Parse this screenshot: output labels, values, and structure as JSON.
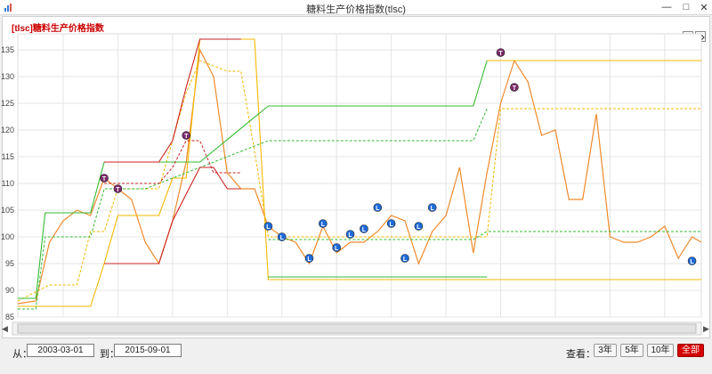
{
  "window": {
    "title": "糖料生产价格指数(tlsc)"
  },
  "chart_title": "[tlsc]糖料生产价格指数",
  "controls": {
    "from_label": "从：",
    "from_value": "2003-03-01",
    "to_label": "到：",
    "to_value": "2015-09-01",
    "view_label": "查看：",
    "range_buttons": [
      "3年",
      "5年",
      "10年",
      "全部"
    ],
    "active_range": "全部"
  },
  "colors": {
    "price": "#f08a2b",
    "upper_band": "#f5b800",
    "lower_band": "#33bb33",
    "red_band": "#cc2222",
    "marker_T": "#7a2a6a",
    "marker_L": "#1e6ad8"
  },
  "chart_data": {
    "type": "line",
    "title": "[tlsc]糖料生产价格指数",
    "y_ticks": [
      85,
      90,
      95,
      100,
      105,
      110,
      115,
      120,
      125,
      130,
      135
    ],
    "ylim": [
      85,
      138
    ],
    "xlim": [
      2003.17,
      2015.67
    ],
    "grid": true,
    "series": [
      {
        "name": "",
        "role": "price",
        "points": [
          [
            2003.17,
            87.5
          ],
          [
            2003.5,
            88
          ],
          [
            2003.75,
            99
          ],
          [
            2004.0,
            103
          ],
          [
            2004.25,
            105
          ],
          [
            2004.5,
            104
          ],
          [
            2004.75,
            111
          ],
          [
            2005.0,
            109
          ],
          [
            2005.25,
            107
          ],
          [
            2005.5,
            99
          ],
          [
            2005.75,
            95
          ],
          [
            2006.0,
            103
          ],
          [
            2006.25,
            114
          ],
          [
            2006.5,
            135
          ],
          [
            2006.75,
            130
          ],
          [
            2007.0,
            112
          ],
          [
            2007.25,
            109
          ],
          [
            2007.5,
            109
          ],
          [
            2007.75,
            102
          ],
          [
            2008.0,
            100
          ],
          [
            2008.25,
            99
          ],
          [
            2008.5,
            95
          ],
          [
            2008.75,
            102
          ],
          [
            2009.0,
            97
          ],
          [
            2009.25,
            99
          ],
          [
            2009.5,
            99
          ],
          [
            2009.75,
            101
          ],
          [
            2010.0,
            104
          ],
          [
            2010.25,
            103
          ],
          [
            2010.5,
            95
          ],
          [
            2010.75,
            101
          ],
          [
            2011.0,
            104
          ],
          [
            2011.25,
            113
          ],
          [
            2011.5,
            97
          ],
          [
            2011.75,
            112
          ],
          [
            2012.0,
            125
          ],
          [
            2012.25,
            133
          ],
          [
            2012.5,
            129
          ],
          [
            2012.75,
            119
          ],
          [
            2013.0,
            120
          ],
          [
            2013.25,
            107
          ],
          [
            2013.5,
            107
          ],
          [
            2013.75,
            123
          ],
          [
            2014.0,
            100
          ],
          [
            2014.25,
            99
          ],
          [
            2014.5,
            99
          ],
          [
            2014.75,
            100
          ],
          [
            2015.0,
            102
          ],
          [
            2015.25,
            96
          ],
          [
            2015.5,
            100
          ],
          [
            2015.67,
            99
          ],
          [
            2015.33,
            95
          ],
          [
            2015.67,
            100
          ]
        ]
      },
      {
        "name": "",
        "role": "upper-band",
        "points": [
          [
            2003.17,
            87
          ],
          [
            2003.75,
            87
          ],
          [
            2004.0,
            87
          ],
          [
            2004.25,
            87
          ],
          [
            2004.5,
            87
          ],
          [
            2004.75,
            95
          ],
          [
            2005.0,
            104
          ],
          [
            2005.25,
            104
          ],
          [
            2005.5,
            104
          ],
          [
            2005.75,
            104
          ],
          [
            2006.0,
            111
          ],
          [
            2006.25,
            111
          ],
          [
            2006.5,
            137
          ],
          [
            2007.0,
            137
          ],
          [
            2007.25,
            137
          ],
          [
            2007.5,
            137
          ],
          [
            2007.75,
            92
          ],
          [
            2011.75,
            92
          ],
          [
            2015.67,
            92
          ]
        ]
      },
      {
        "name": "",
        "role": "upper-band-dashed",
        "points": [
          [
            2003.17,
            88
          ],
          [
            2003.75,
            91
          ],
          [
            2004.25,
            91
          ],
          [
            2004.5,
            101
          ],
          [
            2004.75,
            101
          ],
          [
            2005.0,
            109
          ],
          [
            2005.75,
            109
          ],
          [
            2006.25,
            127
          ],
          [
            2006.5,
            133
          ],
          [
            2007.0,
            131
          ],
          [
            2007.25,
            131
          ],
          [
            2007.5,
            116
          ],
          [
            2007.75,
            100
          ],
          [
            2011.0,
            100
          ],
          [
            2011.75,
            100
          ],
          [
            2012.0,
            124
          ],
          [
            2015.67,
            124
          ]
        ]
      },
      {
        "name": "",
        "role": "upper-solid",
        "points": [
          [
            2011.75,
            133
          ],
          [
            2015.67,
            133
          ]
        ]
      },
      {
        "name": "",
        "role": "lower-band",
        "points": [
          [
            2003.17,
            88.5
          ],
          [
            2003.5,
            88.5
          ],
          [
            2003.67,
            104.5
          ],
          [
            2004.5,
            104.5
          ],
          [
            2004.75,
            114
          ],
          [
            2006.25,
            114
          ],
          [
            2006.5,
            114
          ],
          [
            2007.75,
            124.5
          ],
          [
            2011.0,
            124.5
          ],
          [
            2011.5,
            124.5
          ],
          [
            2011.75,
            133
          ]
        ]
      },
      {
        "name": "",
        "role": "lower-band-dashed",
        "points": [
          [
            2003.17,
            86.5
          ],
          [
            2003.5,
            86.5
          ],
          [
            2003.67,
            100
          ],
          [
            2004.5,
            100
          ],
          [
            2004.75,
            109
          ],
          [
            2005.25,
            109
          ],
          [
            2005.5,
            109
          ],
          [
            2007.75,
            118
          ],
          [
            2011.0,
            118
          ],
          [
            2011.5,
            118
          ],
          [
            2011.75,
            124
          ]
        ]
      },
      {
        "name": "",
        "role": "lower-solid",
        "points": [
          [
            2007.75,
            92.5
          ],
          [
            2011.75,
            92.5
          ]
        ]
      },
      {
        "name": "",
        "role": "lower-dashed-2",
        "points": [
          [
            2007.75,
            99.5
          ],
          [
            2011.5,
            99.5
          ],
          [
            2011.75,
            101
          ],
          [
            2015.67,
            101
          ]
        ]
      },
      {
        "name": "",
        "role": "red-band",
        "points": [
          [
            2004.75,
            114
          ],
          [
            2005.5,
            114
          ],
          [
            2005.75,
            114
          ],
          [
            2006.0,
            118
          ],
          [
            2006.25,
            128
          ],
          [
            2006.5,
            137
          ],
          [
            2007.25,
            137
          ]
        ]
      },
      {
        "name": "",
        "role": "red-band-dashed",
        "points": [
          [
            2004.75,
            110
          ],
          [
            2005.5,
            110
          ],
          [
            2005.75,
            110
          ],
          [
            2006.0,
            113
          ],
          [
            2006.25,
            118
          ],
          [
            2006.5,
            118
          ],
          [
            2006.75,
            112
          ],
          [
            2007.0,
            112
          ],
          [
            2007.25,
            112
          ]
        ]
      },
      {
        "name": "",
        "role": "red-band-low",
        "points": [
          [
            2004.75,
            95
          ],
          [
            2005.5,
            95
          ],
          [
            2005.75,
            95
          ],
          [
            2006.0,
            103
          ],
          [
            2006.25,
            108
          ],
          [
            2006.5,
            113
          ],
          [
            2006.75,
            113
          ],
          [
            2007.0,
            109
          ],
          [
            2007.25,
            109
          ]
        ]
      }
    ],
    "markers": [
      {
        "label": "T",
        "x": 2004.75,
        "y": 111
      },
      {
        "label": "T",
        "x": 2005.0,
        "y": 109
      },
      {
        "label": "T",
        "x": 2006.25,
        "y": 119
      },
      {
        "label": "L",
        "x": 2007.75,
        "y": 102
      },
      {
        "label": "L",
        "x": 2008.0,
        "y": 100
      },
      {
        "label": "L",
        "x": 2008.5,
        "y": 96
      },
      {
        "label": "L",
        "x": 2008.75,
        "y": 102.5
      },
      {
        "label": "L",
        "x": 2009.0,
        "y": 98
      },
      {
        "label": "L",
        "x": 2009.25,
        "y": 100.5
      },
      {
        "label": "L",
        "x": 2009.5,
        "y": 101.5
      },
      {
        "label": "L",
        "x": 2009.75,
        "y": 105.5
      },
      {
        "label": "L",
        "x": 2010.0,
        "y": 102.5
      },
      {
        "label": "L",
        "x": 2010.25,
        "y": 96
      },
      {
        "label": "L",
        "x": 2010.5,
        "y": 102
      },
      {
        "label": "L",
        "x": 2010.75,
        "y": 105.5
      },
      {
        "label": "T",
        "x": 2012.0,
        "y": 134.5
      },
      {
        "label": "T",
        "x": 2012.25,
        "y": 128
      },
      {
        "label": "L",
        "x": 2015.5,
        "y": 95.5
      }
    ]
  }
}
